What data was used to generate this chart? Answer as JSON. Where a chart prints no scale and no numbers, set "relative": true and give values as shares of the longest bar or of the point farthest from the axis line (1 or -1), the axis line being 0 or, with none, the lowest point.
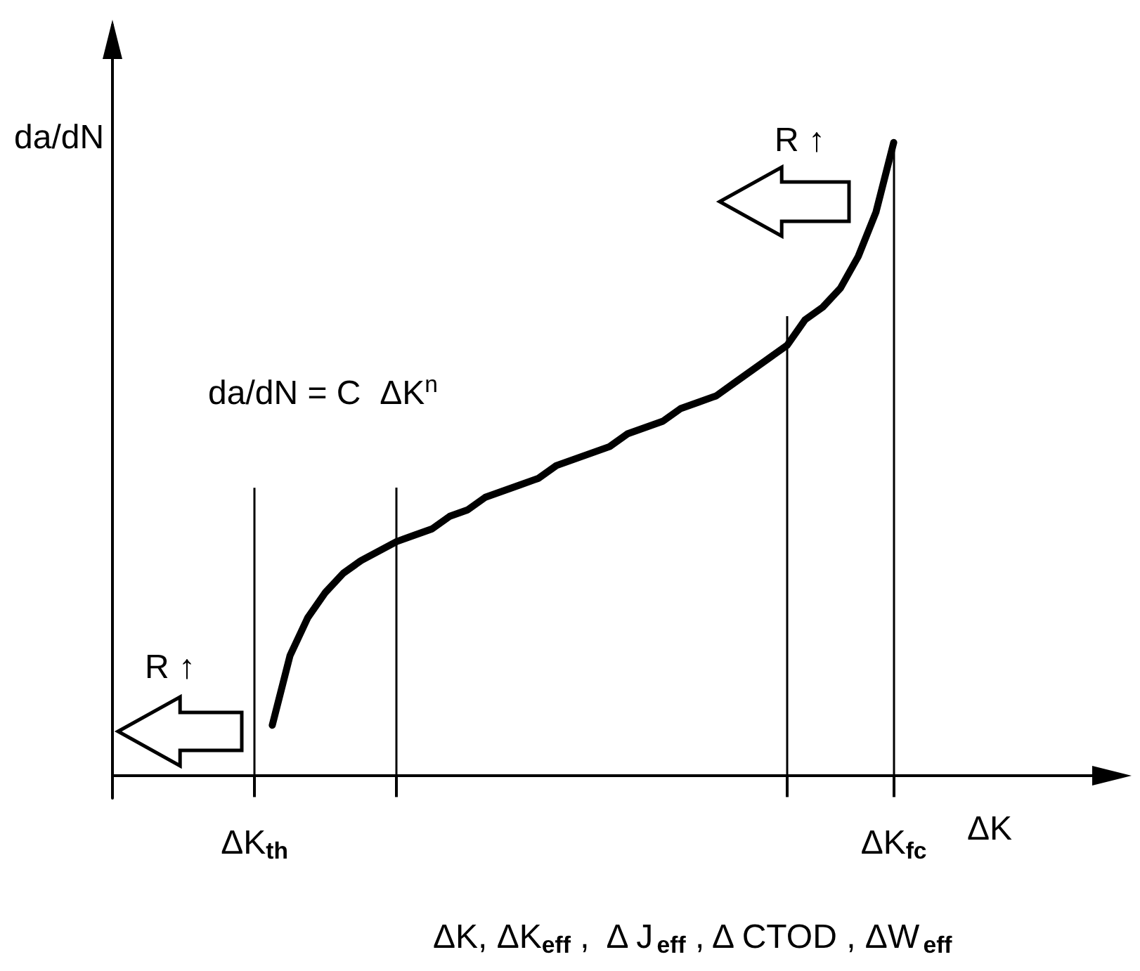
{
  "chart_data": {
    "type": "line",
    "relative": true,
    "ylabel": "da/dN",
    "xlabel": "ΔK",
    "categories": [
      null,
      null,
      null,
      null,
      null,
      null,
      null,
      null,
      "ΔK$_{th}$",
      null,
      null,
      null,
      null,
      null,
      null,
      null,
      null,
      null,
      null,
      null,
      null,
      null,
      null,
      null,
      null,
      null,
      null,
      null,
      null,
      null,
      null,
      null,
      null,
      null,
      null,
      null,
      null,
      null,
      null,
      null,
      null,
      null,
      null,
      null,
      "ΔK$_{fc}$",
      null,
      null,
      null,
      null,
      null,
      null,
      null,
      null,
      null,
      null,
      null,
      null,
      null
    ],
    "values": [
      null,
      null,
      null,
      null,
      null,
      null,
      null,
      null,
      null,
      0.08,
      0.19,
      0.25,
      0.29,
      0.32,
      0.34,
      0.355,
      0.37,
      0.38,
      0.39,
      0.41,
      0.42,
      0.44,
      0.45,
      0.46,
      0.47,
      0.49,
      0.5,
      0.51,
      0.52,
      0.54,
      0.55,
      0.56,
      0.58,
      0.59,
      0.6,
      0.62,
      0.64,
      0.66,
      0.68,
      0.72,
      0.74,
      0.77,
      0.82,
      0.89,
      1.0,
      null,
      null,
      null,
      null,
      null,
      null,
      null,
      null,
      null,
      null,
      null,
      null,
      null
    ],
    "color": "#000000",
    "marker": "none",
    "line_style": "solid",
    "ref_lines": [
      {
        "axis": "x",
        "value": "ΔK$_{th}$",
        "color": "#000000"
      },
      {
        "axis": "x",
        "value": "ΔK$_{fc}$",
        "color": "#000000"
      }
    ],
    "annotations": [
      "da/dN = C  ΔK$^{n}$",
      "R ↑",
      "R ↑",
      "ΔK, ΔK$_{eff}$ ,  Δ J$_{eff}$ , Δ CTOD , ΔW$_{eff}$"
    ]
  }
}
